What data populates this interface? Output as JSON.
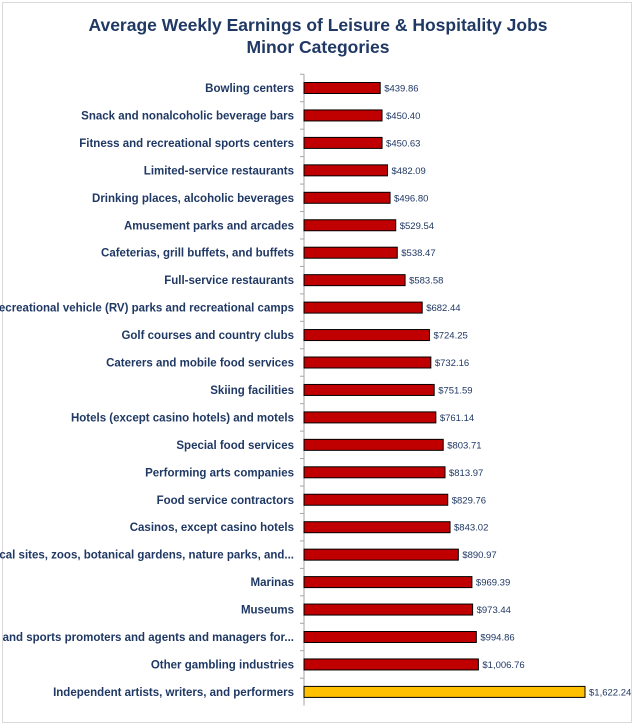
{
  "chart_data": {
    "type": "bar",
    "orientation": "horizontal",
    "title": "Average Weekly Earnings of Leisure & Hospitality Jobs",
    "subtitle": "Minor Categories",
    "xlabel": "",
    "ylabel": "",
    "grid": false,
    "legend": "none",
    "colors": {
      "default": "#c00000",
      "highlight": "#ffc000",
      "bar_outline": "#000000",
      "text": "#1f3864",
      "axis": "#a6a6a6"
    },
    "categories": [
      "Bowling centers",
      "Snack and nonalcoholic beverage bars",
      "Fitness and recreational sports centers",
      "Limited-service restaurants",
      "Drinking places, alcoholic beverages",
      "Amusement parks and arcades",
      "Cafeterias, grill buffets, and buffets",
      "Full-service restaurants",
      "Recreational vehicle (RV) parks and recreational camps",
      "Golf courses and country clubs",
      "Caterers and mobile food services",
      "Skiing facilities",
      "Hotels (except casino hotels) and motels",
      "Special food services",
      "Performing arts companies",
      "Food service contractors",
      "Casinos, except casino hotels",
      "Historical sites, zoos, botanical gardens, nature parks, and...",
      "Marinas",
      "Museums",
      "Arts and sports promoters and agents and managers for...",
      "Other gambling industries",
      "Independent artists, writers, and performers"
    ],
    "values": [
      439.86,
      450.4,
      450.63,
      482.09,
      496.8,
      529.54,
      538.47,
      583.58,
      682.44,
      724.25,
      732.16,
      751.59,
      761.14,
      803.71,
      813.97,
      829.76,
      843.02,
      890.97,
      969.39,
      973.44,
      994.86,
      1006.76,
      1622.24
    ],
    "value_labels": [
      "$439.86",
      "$450.40",
      "$450.63",
      "$482.09",
      "$496.80",
      "$529.54",
      "$538.47",
      "$583.58",
      "$682.44",
      "$724.25",
      "$732.16",
      "$751.59",
      "$761.14",
      "$803.71",
      "$813.97",
      "$829.76",
      "$843.02",
      "$890.97",
      "$969.39",
      "$973.44",
      "$994.86",
      "$1,006.76",
      "$1,622.24"
    ],
    "highlight_index": 22,
    "xlim": [
      0,
      1622.24
    ]
  }
}
